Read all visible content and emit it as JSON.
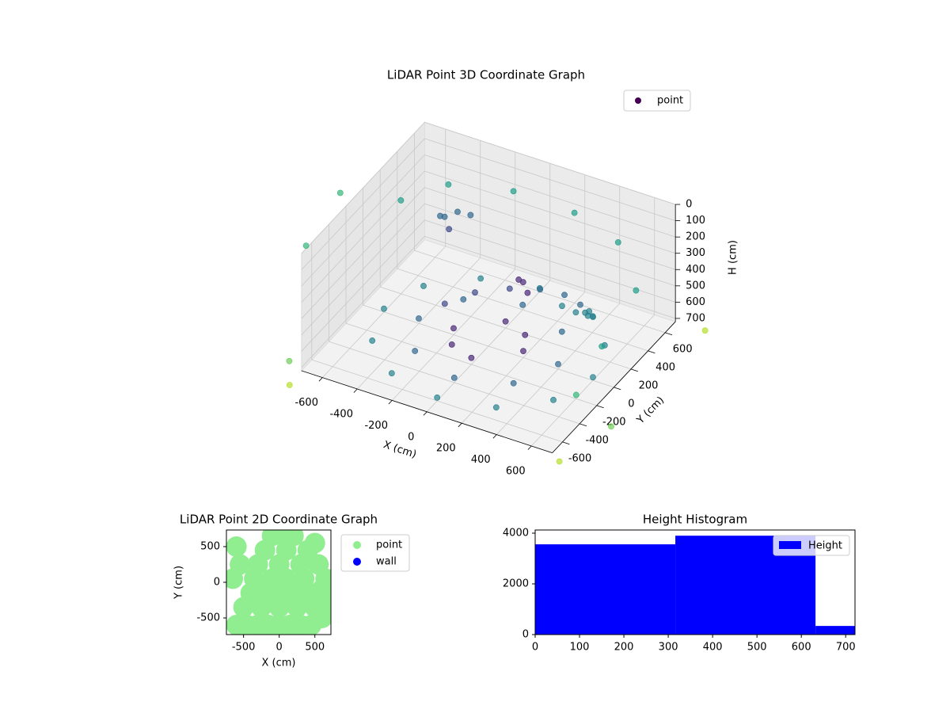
{
  "chart_data": [
    {
      "type": "scatter3d",
      "title": "LiDAR Point 3D Coordinate Graph",
      "xlabel": "X (cm)",
      "ylabel": "Y (cm)",
      "zlabel": "H (cm)",
      "xlim": [
        -720,
        720
      ],
      "ylim": [
        -720,
        720
      ],
      "zlim": [
        0,
        720
      ],
      "z_inverted": true,
      "xticks": [
        -600,
        -400,
        -200,
        0,
        200,
        400,
        600
      ],
      "yticks": [
        -600,
        -400,
        -200,
        0,
        200,
        400,
        600
      ],
      "zticks": [
        0,
        100,
        200,
        300,
        400,
        500,
        600,
        700
      ],
      "grid": true,
      "cmap": "viridis",
      "legend": "upper right",
      "series": [
        {
          "name": "point",
          "color": "#440154",
          "x": [
            400,
            283,
            0,
            -283,
            -400,
            -283,
            0,
            283,
            600,
            520,
            300,
            0,
            -300,
            -520,
            -600,
            -520,
            -300,
            0,
            300,
            520,
            200,
            0,
            -200,
            0,
            141,
            -141,
            -300,
            -200,
            -50,
            100,
            250,
            380,
            480,
            550,
            600,
            620,
            600,
            560,
            -350,
            -300,
            -250,
            -400,
            -300,
            150,
            200,
            100,
            -650,
            -500,
            -200,
            150,
            450,
            700,
            700,
            700,
            -900,
            -900,
            950,
            900,
            -800,
            800,
            -700
          ],
          "y": [
            0,
            283,
            400,
            283,
            0,
            -283,
            -400,
            -283,
            0,
            300,
            520,
            600,
            520,
            300,
            0,
            -300,
            -520,
            -600,
            -520,
            -300,
            0,
            200,
            0,
            -200,
            141,
            -141,
            100,
            250,
            350,
            400,
            380,
            300,
            200,
            100,
            0,
            -100,
            -200,
            -280,
            200,
            250,
            300,
            250,
            150,
            100,
            50,
            150,
            300,
            550,
            700,
            700,
            600,
            300,
            -100,
            -400,
            -300,
            100,
            -500,
            700,
            -700,
            -800,
            -900
          ],
          "h": [
            690,
            690,
            690,
            690,
            690,
            690,
            690,
            690,
            700,
            700,
            700,
            700,
            700,
            700,
            700,
            700,
            700,
            700,
            700,
            700,
            680,
            680,
            680,
            680,
            680,
            680,
            620,
            600,
            580,
            560,
            530,
            500,
            450,
            400,
            330,
            260,
            190,
            120,
            160,
            140,
            170,
            200,
            190,
            330,
            350,
            360,
            220,
            210,
            230,
            240,
            260,
            300,
            420,
            550,
            250,
            150,
            600,
            700,
            700,
            700,
            700
          ]
        }
      ]
    },
    {
      "type": "scatter",
      "title": "LiDAR Point 2D Coordinate Graph",
      "xlabel": "X (cm)",
      "ylabel": "Y (cm)",
      "xlim": [
        -740,
        725
      ],
      "ylim": [
        -733,
        733
      ],
      "xticks": [
        -500,
        0,
        500
      ],
      "yticks": [
        -500,
        0,
        500
      ],
      "legend": "outside right",
      "series": [
        {
          "name": "point",
          "color": "#90ee90",
          "x": [
            -600,
            -450,
            -300,
            -150,
            0,
            150,
            300,
            450,
            600,
            -500,
            -250,
            0,
            250,
            500,
            -400,
            -200,
            0,
            200,
            400,
            600,
            -650,
            -350,
            -100,
            100,
            350,
            650,
            -550,
            -300,
            0,
            300,
            550,
            -200,
            100,
            400,
            -600,
            500,
            200,
            -100,
            0,
            650
          ],
          "y": [
            -600,
            -600,
            -600,
            -600,
            -600,
            -600,
            -600,
            -600,
            -500,
            -350,
            -350,
            -350,
            -350,
            -350,
            -150,
            -150,
            -150,
            -150,
            -150,
            -100,
            50,
            50,
            50,
            50,
            50,
            50,
            250,
            250,
            250,
            250,
            250,
            450,
            450,
            450,
            500,
            550,
            650,
            650,
            700,
            -300
          ]
        },
        {
          "name": "wall",
          "color": "#0000ff",
          "x": [],
          "y": []
        }
      ]
    },
    {
      "type": "histogram",
      "title": "Height Histogram",
      "name": "Height",
      "color": "#0000ff",
      "bins": [
        0,
        316,
        632,
        721
      ],
      "values": [
        3560,
        3900,
        340
      ],
      "xlim": [
        0,
        721
      ],
      "ylim": [
        0,
        4125
      ],
      "xticks": [
        0,
        100,
        200,
        300,
        400,
        500,
        600,
        700
      ],
      "yticks": [
        0,
        2000,
        4000
      ],
      "legend": "upper right"
    }
  ]
}
